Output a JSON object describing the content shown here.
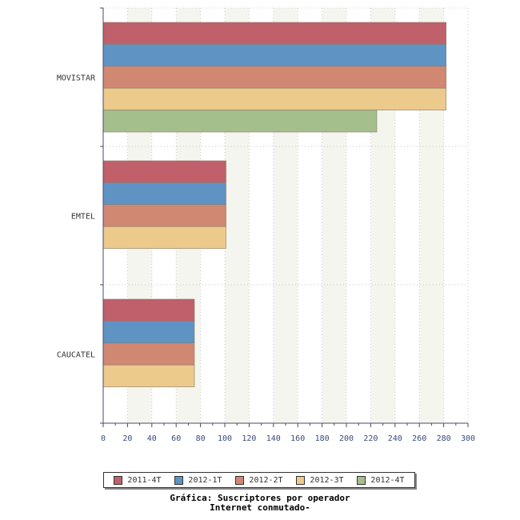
{
  "chart_data": {
    "type": "bar",
    "orientation": "horizontal",
    "categories": [
      "MOVISTAR",
      "EMTEL",
      "CAUCATEL"
    ],
    "series": [
      {
        "name": "2011-4T",
        "color": "#c0606a",
        "values": [
          282,
          101,
          75
        ]
      },
      {
        "name": "2012-1T",
        "color": "#5f93c4",
        "values": [
          282,
          101,
          75
        ]
      },
      {
        "name": "2012-2T",
        "color": "#d08872",
        "values": [
          282,
          101,
          75
        ]
      },
      {
        "name": "2012-3T",
        "color": "#ecca8c",
        "values": [
          282,
          101,
          75
        ]
      },
      {
        "name": "2012-4T",
        "color": "#a4bf8c",
        "values": [
          225,
          null,
          null
        ]
      }
    ],
    "xlim": [
      0,
      300
    ],
    "xticks": [
      0,
      20,
      40,
      60,
      80,
      100,
      120,
      140,
      160,
      180,
      200,
      220,
      240,
      260,
      280,
      300
    ],
    "grid": true,
    "legend_position": "bottom",
    "caption_line1": "Gráfica: Suscriptores por operador",
    "caption_line2": "Internet conmutado-"
  }
}
